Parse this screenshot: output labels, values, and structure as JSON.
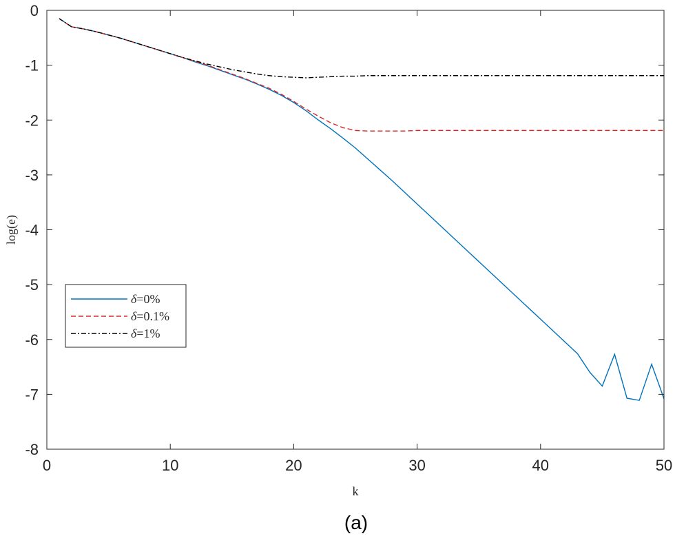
{
  "chart_data": {
    "type": "line",
    "xlabel": "k",
    "ylabel": "log(e)",
    "xlim": [
      0,
      50
    ],
    "ylim": [
      -8,
      0
    ],
    "xticks": [
      0,
      10,
      20,
      30,
      40,
      50
    ],
    "yticks": [
      0,
      -1,
      -2,
      -3,
      -4,
      -5,
      -6,
      -7,
      -8
    ],
    "grid": false,
    "legend_position": "center-left",
    "caption": "(a)",
    "series": [
      {
        "name": "δ=0%",
        "color": "#0072BD",
        "dash": "solid",
        "x": [
          1,
          2,
          3,
          4,
          5,
          6,
          7,
          8,
          9,
          10,
          11,
          12,
          13,
          14,
          15,
          16,
          17,
          18,
          19,
          20,
          21,
          22,
          23,
          24,
          25,
          26,
          27,
          28,
          29,
          30,
          31,
          32,
          33,
          34,
          35,
          36,
          37,
          38,
          39,
          40,
          41,
          42,
          43,
          44,
          45,
          46,
          47,
          48,
          49,
          50
        ],
        "y": [
          -0.15,
          -0.3,
          -0.34,
          -0.39,
          -0.45,
          -0.51,
          -0.58,
          -0.65,
          -0.72,
          -0.79,
          -0.86,
          -0.94,
          -1.01,
          -1.09,
          -1.17,
          -1.25,
          -1.34,
          -1.44,
          -1.55,
          -1.68,
          -1.83,
          -2.0,
          -2.16,
          -2.33,
          -2.51,
          -2.71,
          -2.91,
          -3.11,
          -3.32,
          -3.53,
          -3.74,
          -3.95,
          -4.16,
          -4.37,
          -4.58,
          -4.79,
          -5.0,
          -5.21,
          -5.42,
          -5.63,
          -5.84,
          -6.05,
          -6.26,
          -6.6,
          -6.85,
          -6.27,
          -7.07,
          -7.11,
          -6.45,
          -7.08
        ]
      },
      {
        "name": "δ=0.1%",
        "color": "#D62728",
        "dash": "dashed",
        "x": [
          1,
          2,
          3,
          4,
          5,
          6,
          7,
          8,
          9,
          10,
          11,
          12,
          13,
          14,
          15,
          16,
          17,
          18,
          19,
          20,
          21,
          22,
          23,
          24,
          25,
          26,
          27,
          28,
          29,
          30,
          31,
          32,
          33,
          34,
          35,
          36,
          37,
          38,
          39,
          40,
          41,
          42,
          43,
          44,
          45,
          46,
          47,
          48,
          49,
          50
        ],
        "y": [
          -0.15,
          -0.3,
          -0.34,
          -0.39,
          -0.45,
          -0.51,
          -0.58,
          -0.65,
          -0.72,
          -0.79,
          -0.86,
          -0.93,
          -1.0,
          -1.08,
          -1.16,
          -1.24,
          -1.33,
          -1.42,
          -1.53,
          -1.66,
          -1.8,
          -1.93,
          -2.05,
          -2.14,
          -2.19,
          -2.2,
          -2.2,
          -2.2,
          -2.2,
          -2.19,
          -2.19,
          -2.19,
          -2.19,
          -2.19,
          -2.19,
          -2.19,
          -2.19,
          -2.19,
          -2.19,
          -2.19,
          -2.19,
          -2.19,
          -2.19,
          -2.19,
          -2.19,
          -2.19,
          -2.19,
          -2.19,
          -2.19,
          -2.19
        ]
      },
      {
        "name": "δ=1%",
        "color": "#000000",
        "dash": "dashdot",
        "x": [
          1,
          2,
          3,
          4,
          5,
          6,
          7,
          8,
          9,
          10,
          11,
          12,
          13,
          14,
          15,
          16,
          17,
          18,
          19,
          20,
          21,
          22,
          23,
          24,
          25,
          26,
          27,
          28,
          29,
          30,
          31,
          32,
          33,
          34,
          35,
          36,
          37,
          38,
          39,
          40,
          41,
          42,
          43,
          44,
          45,
          46,
          47,
          48,
          49,
          50
        ],
        "y": [
          -0.15,
          -0.3,
          -0.34,
          -0.39,
          -0.45,
          -0.51,
          -0.58,
          -0.65,
          -0.72,
          -0.79,
          -0.86,
          -0.92,
          -0.98,
          -1.03,
          -1.08,
          -1.12,
          -1.16,
          -1.19,
          -1.21,
          -1.22,
          -1.23,
          -1.22,
          -1.21,
          -1.2,
          -1.2,
          -1.19,
          -1.19,
          -1.19,
          -1.19,
          -1.19,
          -1.19,
          -1.19,
          -1.19,
          -1.19,
          -1.19,
          -1.19,
          -1.19,
          -1.19,
          -1.19,
          -1.19,
          -1.19,
          -1.19,
          -1.19,
          -1.19,
          -1.19,
          -1.19,
          -1.19,
          -1.19,
          -1.19,
          -1.19
        ]
      }
    ]
  }
}
